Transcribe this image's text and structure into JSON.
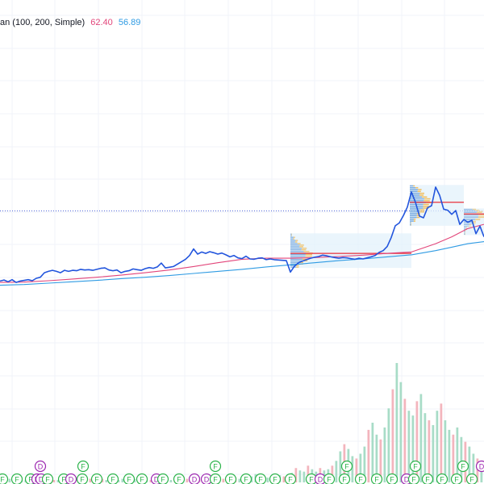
{
  "legend": {
    "text": "an (100, 200, Simple)",
    "value_a": "62.40",
    "value_b": "56.89",
    "colors": {
      "ma_fast": "#e2457a",
      "ma_slow": "#2f9be3",
      "price": "#2255dd"
    }
  },
  "chart_data": {
    "type": "line",
    "title": "",
    "xlabel": "",
    "ylabel": "",
    "grid": true,
    "price_line_level": 67.5,
    "ylim": [
      20,
      90
    ],
    "series": [
      {
        "name": "price",
        "x": [
          0,
          5,
          10,
          15,
          20,
          25,
          30,
          35,
          40,
          45,
          50,
          55,
          60,
          65,
          70,
          75,
          80,
          85,
          90,
          95,
          100,
          105,
          110,
          115,
          120,
          125,
          130,
          135,
          140,
          145,
          150,
          155,
          160,
          165,
          170,
          175,
          180,
          185,
          190,
          195,
          200,
          205,
          210,
          215,
          220,
          225,
          230,
          235,
          240,
          245,
          250,
          255,
          260,
          265,
          270,
          275,
          280,
          285,
          290,
          295,
          300,
          305,
          310,
          315,
          320,
          325,
          330,
          335,
          340,
          345,
          350,
          355,
          360,
          365,
          370,
          375,
          380,
          385,
          390,
          395,
          400,
          405,
          410,
          415,
          420,
          425,
          430,
          435,
          440,
          445,
          450,
          455,
          460,
          465,
          470,
          475,
          480,
          485,
          490,
          495,
          500,
          505,
          510,
          515,
          520,
          525,
          530,
          535,
          540,
          545,
          550,
          555,
          560,
          565,
          570,
          575,
          580,
          585,
          590,
          595,
          600
        ],
        "y": [
          47.2,
          47.5,
          47.0,
          47.6,
          46.8,
          47.2,
          47.4,
          47.6,
          47.3,
          48.0,
          48.3,
          49.6,
          50.0,
          50.3,
          50.0,
          49.6,
          50.3,
          50.0,
          50.3,
          50.2,
          50.6,
          50.4,
          50.5,
          50.3,
          50.6,
          50.9,
          51.0,
          50.4,
          50.2,
          50.4,
          49.6,
          50.0,
          50.2,
          50.7,
          50.5,
          50.3,
          50.8,
          51.1,
          50.9,
          51.3,
          52.4,
          51.0,
          51.2,
          51.4,
          52.1,
          52.8,
          53.5,
          54.6,
          56.5,
          55.0,
          55.6,
          55.2,
          55.7,
          55.4,
          55.0,
          55.3,
          54.8,
          54.2,
          54.6,
          53.9,
          53.7,
          54.4,
          53.6,
          53.5,
          53.8,
          53.9,
          53.4,
          53.6,
          53.4,
          53.3,
          53.2,
          53.1,
          49.8,
          51.5,
          52.5,
          53.0,
          53.4,
          53.8,
          54.1,
          54.3,
          54.7,
          54.5,
          54.2,
          54.0,
          53.8,
          54.0,
          53.9,
          53.7,
          53.5,
          53.8,
          53.6,
          53.9,
          54.2,
          54.6,
          55.5,
          56.0,
          57.2,
          59.8,
          63.2,
          64.0,
          66.1,
          68.6,
          73.0,
          70.0,
          66.0,
          65.5,
          68.4,
          69.0,
          74.4,
          72.0,
          68.0,
          67.7,
          66.5,
          67.6,
          63.6,
          65.0,
          64.2,
          64.8,
          60.9,
          63.1,
          60.0
        ],
        "color": "#2255dd"
      },
      {
        "name": "ma_fast",
        "x": [
          0,
          30,
          60,
          90,
          120,
          150,
          180,
          210,
          240,
          270,
          300,
          330,
          360,
          390,
          420,
          450,
          480,
          510,
          540,
          560,
          580,
          600
        ],
        "y": [
          46.8,
          46.9,
          47.3,
          47.8,
          48.3,
          48.9,
          49.6,
          50.4,
          51.4,
          52.5,
          53.5,
          53.8,
          53.8,
          54.0,
          54.3,
          54.7,
          55.2,
          55.6,
          58.0,
          60.0,
          62.4,
          63.6
        ],
        "color": "#e2457a"
      },
      {
        "name": "ma_slow",
        "x": [
          0,
          30,
          60,
          90,
          120,
          150,
          180,
          210,
          240,
          270,
          300,
          330,
          360,
          390,
          420,
          450,
          480,
          510,
          540,
          560,
          580,
          600
        ],
        "y": [
          46.0,
          46.2,
          46.6,
          47.0,
          47.4,
          47.9,
          48.3,
          48.8,
          49.4,
          50.0,
          50.6,
          51.3,
          51.9,
          52.5,
          53.1,
          53.6,
          54.2,
          54.8,
          56.0,
          57.0,
          58.0,
          58.6
        ],
        "color": "#2f9be3"
      }
    ],
    "volume_profiles": [
      {
        "x_start": 360,
        "x_end": 510,
        "y_top": 61.0,
        "y_bottom": 51.0,
        "poc": 55.2
      },
      {
        "x_start": 508,
        "x_end": 575,
        "y_top": 75.0,
        "y_bottom": 63.2,
        "poc": 70.0
      },
      {
        "x_start": 575,
        "x_end": 600,
        "y_top": 68.2,
        "y_bottom": 60.5,
        "poc": 66.6
      }
    ],
    "volume": {
      "x_start": 0,
      "x_end": 600,
      "max": 100,
      "values": [
        2,
        2,
        3,
        2,
        3,
        2,
        2,
        3,
        2,
        3,
        2,
        2,
        3,
        2,
        2,
        3,
        2,
        3,
        2,
        2,
        3,
        2,
        3,
        2,
        2,
        3,
        2,
        3,
        2,
        2,
        3,
        2,
        2,
        3,
        2,
        3,
        2,
        2,
        3,
        2,
        2,
        3,
        2,
        3,
        3,
        2,
        3,
        4,
        3,
        2,
        4,
        6,
        5,
        3,
        4,
        3,
        3,
        5,
        4,
        3,
        4,
        6,
        5,
        7,
        6,
        5,
        4,
        5,
        4,
        6,
        5,
        4,
        8,
        12,
        10,
        9,
        14,
        11,
        9,
        12,
        10,
        11,
        14,
        18,
        26,
        32,
        28,
        22,
        20,
        24,
        30,
        44,
        50,
        40,
        36,
        46,
        62,
        78,
        100,
        84,
        70,
        60,
        56,
        68,
        74,
        58,
        52,
        48,
        60,
        66,
        52,
        44,
        40,
        46,
        38,
        34,
        30,
        24,
        20,
        14
      ]
    },
    "event_markers": [
      {
        "letter": "D",
        "x": 50,
        "row": "upper"
      },
      {
        "letter": "F",
        "x": 103,
        "row": "upper"
      },
      {
        "letter": "F",
        "x": 267,
        "row": "upper"
      },
      {
        "letter": "F",
        "x": 430,
        "row": "upper"
      },
      {
        "letter": "F",
        "x": 515,
        "row": "upper"
      },
      {
        "letter": "F",
        "x": 574,
        "row": "upper"
      },
      {
        "letter": "D",
        "x": 597,
        "row": "upper"
      },
      {
        "letter": "F",
        "x": 3,
        "row": "lower"
      },
      {
        "letter": "F",
        "x": 21,
        "row": "lower"
      },
      {
        "letter": "F",
        "x": 38,
        "row": "lower"
      },
      {
        "letter": "D",
        "x": 46,
        "row": "lower"
      },
      {
        "letter": "D",
        "x": 51,
        "row": "lower"
      },
      {
        "letter": "F",
        "x": 59,
        "row": "lower"
      },
      {
        "letter": "F",
        "x": 79,
        "row": "lower"
      },
      {
        "letter": "D",
        "x": 88,
        "row": "lower"
      },
      {
        "letter": "F",
        "x": 102,
        "row": "lower"
      },
      {
        "letter": "F",
        "x": 120,
        "row": "lower"
      },
      {
        "letter": "F",
        "x": 140,
        "row": "lower"
      },
      {
        "letter": "F",
        "x": 160,
        "row": "lower"
      },
      {
        "letter": "F",
        "x": 176,
        "row": "lower"
      },
      {
        "letter": "D",
        "x": 194,
        "row": "lower"
      },
      {
        "letter": "F",
        "x": 202,
        "row": "lower"
      },
      {
        "letter": "F",
        "x": 222,
        "row": "lower"
      },
      {
        "letter": "D",
        "x": 241,
        "row": "lower"
      },
      {
        "letter": "D",
        "x": 256,
        "row": "lower"
      },
      {
        "letter": "F",
        "x": 267,
        "row": "lower"
      },
      {
        "letter": "F",
        "x": 286,
        "row": "lower"
      },
      {
        "letter": "F",
        "x": 305,
        "row": "lower"
      },
      {
        "letter": "F",
        "x": 323,
        "row": "lower"
      },
      {
        "letter": "F",
        "x": 341,
        "row": "lower"
      },
      {
        "letter": "F",
        "x": 360,
        "row": "lower"
      },
      {
        "letter": "F",
        "x": 386,
        "row": "lower"
      },
      {
        "letter": "D",
        "x": 397,
        "row": "lower"
      },
      {
        "letter": "F",
        "x": 408,
        "row": "lower"
      },
      {
        "letter": "F",
        "x": 427,
        "row": "lower"
      },
      {
        "letter": "F",
        "x": 447,
        "row": "lower"
      },
      {
        "letter": "F",
        "x": 467,
        "row": "lower"
      },
      {
        "letter": "F",
        "x": 486,
        "row": "lower"
      },
      {
        "letter": "D",
        "x": 504,
        "row": "lower"
      },
      {
        "letter": "F",
        "x": 513,
        "row": "lower"
      },
      {
        "letter": "F",
        "x": 530,
        "row": "lower"
      },
      {
        "letter": "F",
        "x": 548,
        "row": "lower"
      },
      {
        "letter": "F",
        "x": 566,
        "row": "lower"
      },
      {
        "letter": "F",
        "x": 585,
        "row": "lower"
      }
    ]
  }
}
